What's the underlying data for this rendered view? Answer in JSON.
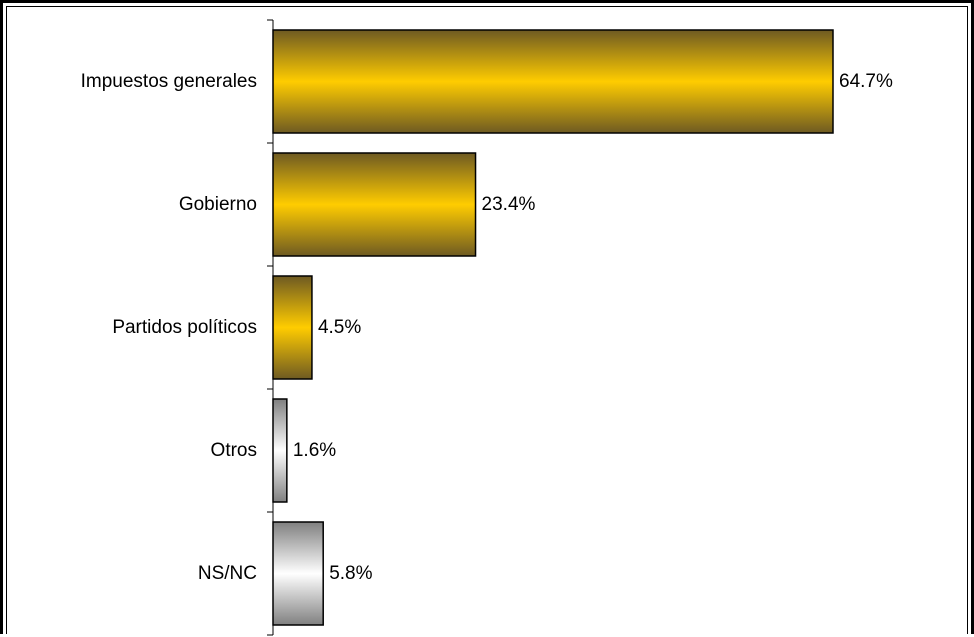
{
  "chart_data": {
    "type": "bar",
    "orientation": "horizontal",
    "categories": [
      "Impuestos generales",
      "Gobierno",
      "Partidos políticos",
      "Otros",
      "NS/NC"
    ],
    "values": [
      64.7,
      23.4,
      4.5,
      1.6,
      5.8
    ],
    "value_labels": [
      "64.7%",
      "23.4%",
      "4.5%",
      "1.6%",
      "5.8%"
    ],
    "title": "",
    "xlabel": "",
    "ylabel": "",
    "xlim": [
      0,
      100
    ],
    "grid": false,
    "legend": "none",
    "colors": {
      "gold_edge": "#6e5a22",
      "gold_mid": "#ffcc00",
      "gray_edge": "#808080",
      "gray_mid": "#ffffff"
    },
    "bar_styles": [
      "gold",
      "gold",
      "gold",
      "gray",
      "gray"
    ]
  }
}
